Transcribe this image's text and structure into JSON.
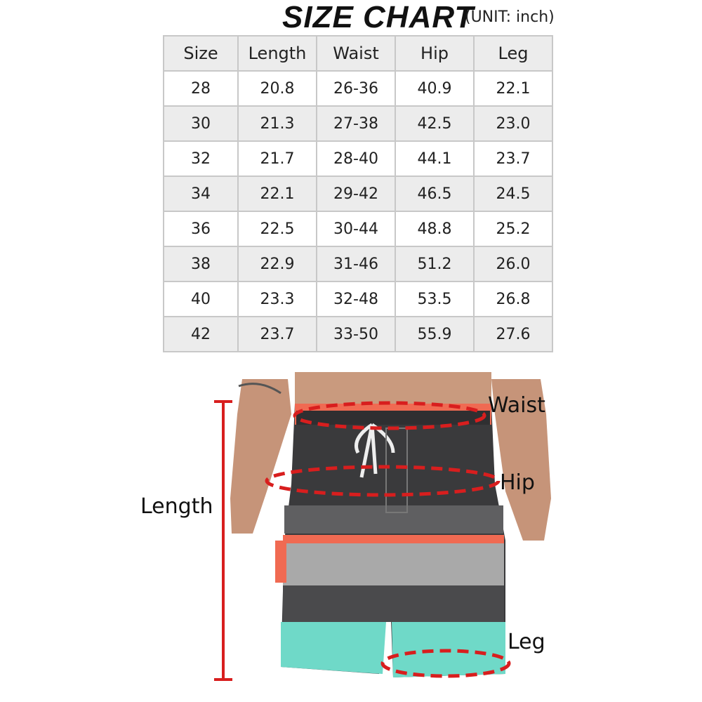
{
  "title": "SIZE CHART",
  "unit": "(UNIT: inch)",
  "table": {
    "headers": [
      "Size",
      "Length",
      "Waist",
      "Hip",
      "Leg"
    ],
    "rows": [
      [
        "28",
        "20.8",
        "26-36",
        "40.9",
        "22.1"
      ],
      [
        "30",
        "21.3",
        "27-38",
        "42.5",
        "23.0"
      ],
      [
        "32",
        "21.7",
        "28-40",
        "44.1",
        "23.7"
      ],
      [
        "34",
        "22.1",
        "29-42",
        "46.5",
        "24.5"
      ],
      [
        "36",
        "22.5",
        "30-44",
        "48.8",
        "25.2"
      ],
      [
        "38",
        "22.9",
        "31-46",
        "51.2",
        "26.0"
      ],
      [
        "40",
        "23.3",
        "32-48",
        "53.5",
        "26.8"
      ],
      [
        "42",
        "23.7",
        "33-50",
        "55.9",
        "27.6"
      ]
    ]
  },
  "diagram": {
    "labels": {
      "waist": "Waist",
      "hip": "Hip",
      "length": "Length",
      "leg": "Leg"
    },
    "colors": {
      "measure_line": "#d81e1e",
      "shorts_dark": "#3a3a3c",
      "stripe_coral": "#f06a52",
      "stripe_gray": "#a9a9a9",
      "teal": "#6fd9c8"
    }
  }
}
